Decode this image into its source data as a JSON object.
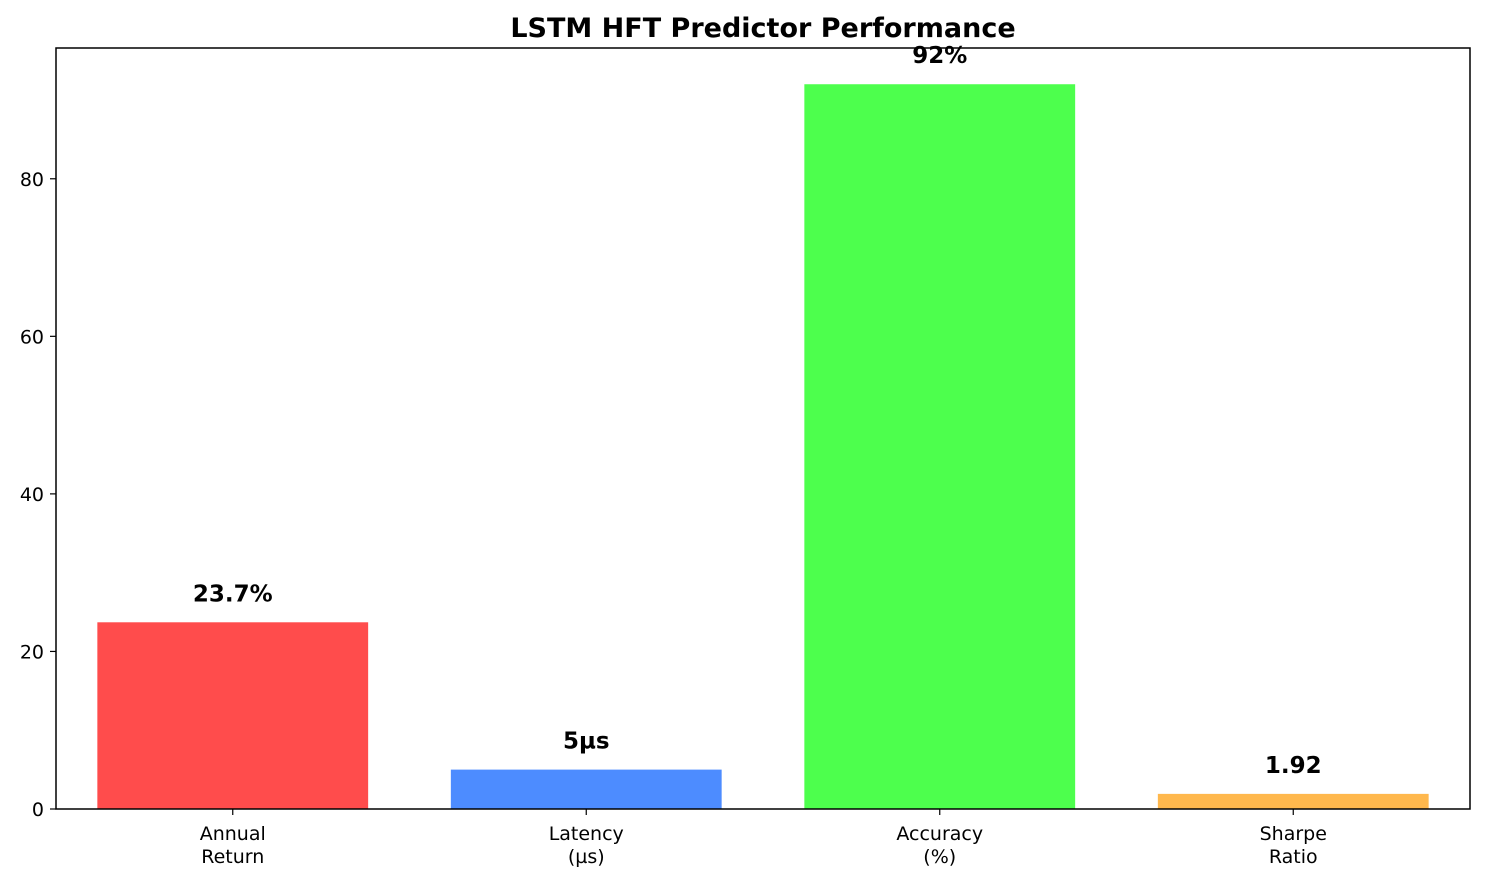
{
  "chart_data": {
    "type": "bar",
    "title": "LSTM HFT Predictor Performance",
    "xlabel": "",
    "ylabel": "",
    "categories": [
      [
        "Annual",
        "Return"
      ],
      [
        "Latency",
        "(µs)"
      ],
      [
        "Accuracy",
        "(%)"
      ],
      [
        "Sharpe",
        "Ratio"
      ]
    ],
    "values": [
      23.7,
      5,
      92,
      1.92
    ],
    "data_labels": [
      "23.7%",
      "5µs",
      "92%",
      "1.92"
    ],
    "colors": [
      "#ff4c4c",
      "#4d8cff",
      "#4dff4d",
      "#ffb84d"
    ],
    "ylim": [
      0,
      96.6
    ],
    "yticks": [
      0,
      20,
      40,
      60,
      80
    ],
    "grid": false,
    "legend": "none"
  }
}
